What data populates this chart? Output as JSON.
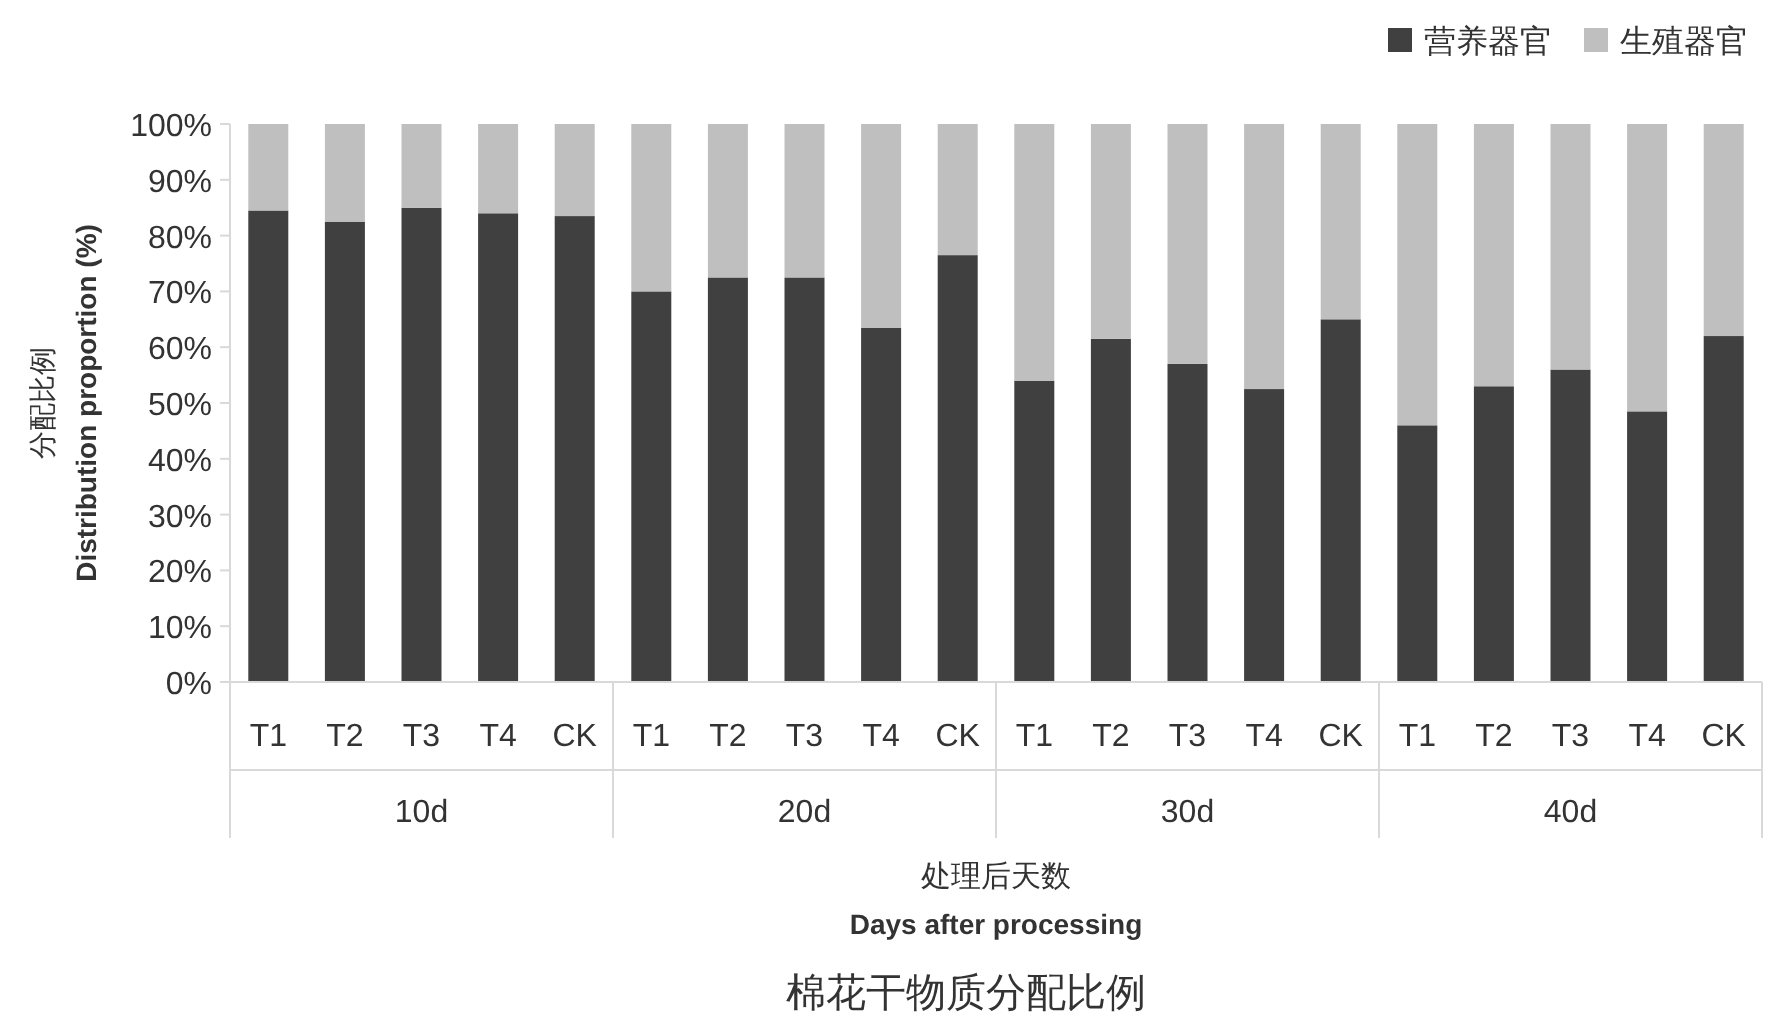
{
  "chart_data": {
    "type": "bar",
    "stacked": true,
    "title": "棉花干物质分配比例",
    "xlabel": "处理后天数\nDays after processing",
    "ylabel": "分配比例\nDistribution proportion (%)",
    "categories": [
      "T1",
      "T2",
      "T3",
      "T4",
      "CK",
      "T1",
      "T2",
      "T3",
      "T4",
      "CK",
      "T1",
      "T2",
      "T3",
      "T4",
      "CK",
      "T1",
      "T2",
      "T3",
      "T4",
      "CK"
    ],
    "annotations": [
      "10d",
      "20d",
      "30d",
      "40d"
    ],
    "series": [
      {
        "name": "营养器官",
        "color": "#404040",
        "values": [
          84.5,
          82.5,
          85,
          84,
          83.5,
          70,
          72.5,
          72.5,
          63.5,
          76.5,
          54,
          61.5,
          57,
          52.5,
          65,
          46,
          53,
          56,
          48.5,
          62
        ]
      },
      {
        "name": "生殖器官",
        "color": "#bfbfbf",
        "values": [
          15.5,
          17.5,
          15,
          16,
          16.5,
          30,
          27.5,
          27.5,
          36.5,
          23.5,
          46,
          38.5,
          43,
          47.5,
          35,
          54,
          47,
          44,
          51.5,
          38
        ]
      }
    ],
    "ylim": [
      0,
      100
    ],
    "yticks": [
      {
        "value": 0,
        "label": "0%"
      },
      {
        "value": 10,
        "label": "10%"
      },
      {
        "value": 20,
        "label": "20%"
      },
      {
        "value": 30,
        "label": "30%"
      },
      {
        "value": 40,
        "label": "40%"
      },
      {
        "value": 50,
        "label": "50%"
      },
      {
        "value": 60,
        "label": "60%"
      },
      {
        "value": 70,
        "label": "70%"
      },
      {
        "value": 80,
        "label": "80%"
      },
      {
        "value": 90,
        "label": "90%"
      },
      {
        "value": 100,
        "label": "100%"
      }
    ],
    "legend": "top right"
  }
}
